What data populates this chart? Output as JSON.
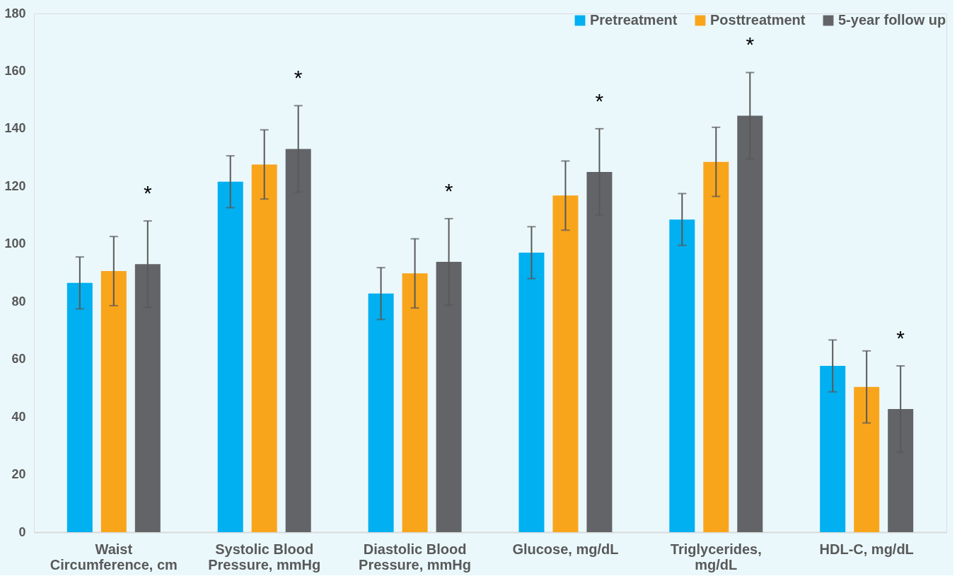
{
  "chart_data": {
    "type": "bar",
    "categories": [
      "Waist Circumference, cm",
      "Systolic Blood Pressure, mmHg",
      "Diastolic Blood Pressure, mmHg",
      "Glucose, mg/dL",
      "Triglycerides, mg/dL",
      "HDL-C, mg/dL"
    ],
    "series": [
      {
        "name": "Pretreatment",
        "color": "#00b0f0",
        "values": [
          86.5,
          121.6,
          82.8,
          97,
          108.5,
          57.7
        ],
        "errors": [
          9,
          9,
          9,
          9,
          9,
          9
        ]
      },
      {
        "name": "Posttreatment",
        "color": "#f9a51b",
        "values": [
          90.6,
          127.6,
          89.8,
          116.8,
          128.5,
          50.4
        ],
        "errors": [
          12,
          12,
          12,
          12,
          12,
          12.5
        ]
      },
      {
        "name": "5-year follow up",
        "color": "#636467",
        "values": [
          93,
          133,
          93.8,
          125,
          144.5,
          42.7
        ],
        "errors": [
          15,
          15,
          15,
          15,
          15,
          15
        ]
      }
    ],
    "annotations": [
      "*",
      "*",
      "*",
      "*",
      "*",
      "*"
    ],
    "ylim": [
      0,
      180
    ],
    "yticks": [
      0,
      20,
      40,
      60,
      80,
      100,
      120,
      140,
      160,
      180
    ],
    "grid": false,
    "legend": "top right"
  }
}
